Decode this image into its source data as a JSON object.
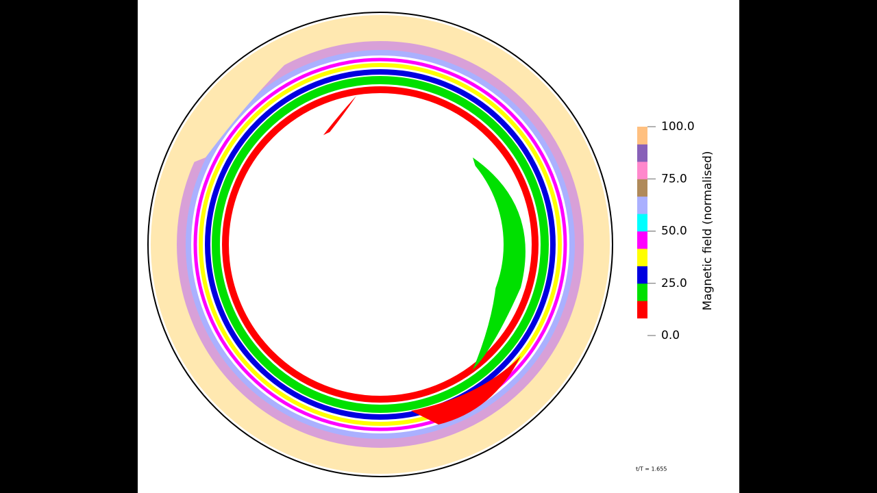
{
  "colorbar": {
    "label": "Magnetic field (normalised)",
    "range": [
      0,
      100
    ],
    "ticks": [
      {
        "value": 0,
        "label": "0.0"
      },
      {
        "value": 25,
        "label": "25.0"
      },
      {
        "value": 50,
        "label": "50.0"
      },
      {
        "value": 75,
        "label": "75.0"
      },
      {
        "value": 100,
        "label": "100.0"
      }
    ],
    "colors": [
      "#ffffff",
      "#ff0000",
      "#00e000",
      "#0000e0",
      "#ffff00",
      "#ff00ff",
      "#00ffff",
      "#aab0ff",
      "#b08a5a",
      "#ff88cc",
      "#8860b8",
      "#ffc080"
    ]
  },
  "annotation": "t/T = 1.655"
}
